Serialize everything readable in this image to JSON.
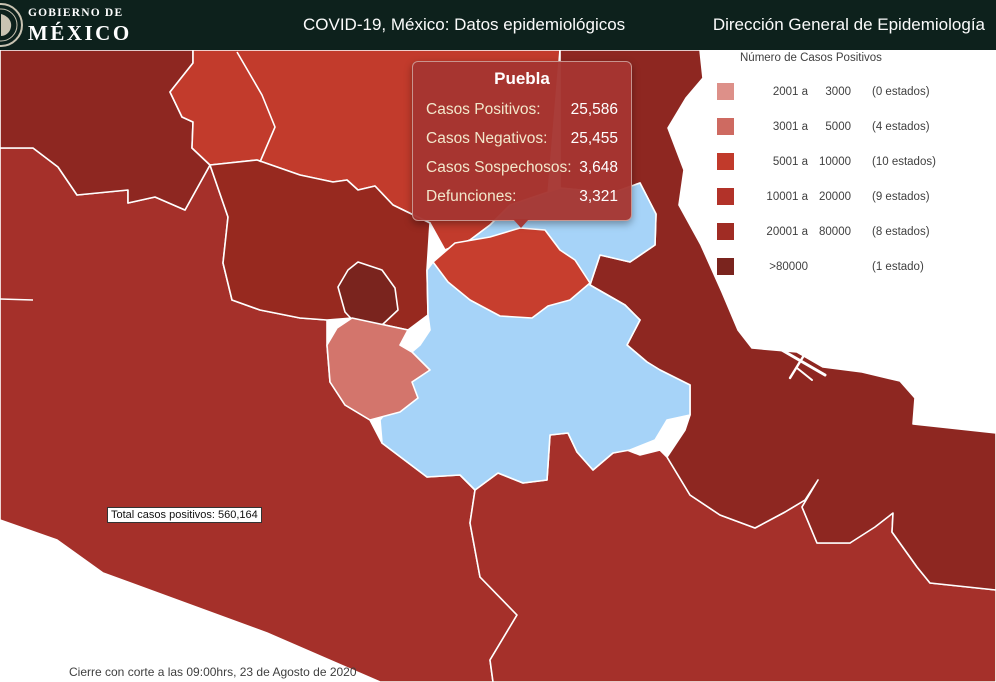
{
  "header": {
    "logo_small": "GOBIERNO DE",
    "logo_large": "MÉXICO",
    "title": "COVID-19, México: Datos epidemiológicos",
    "subtitle": "Dirección General de Epidemiología",
    "bg": "#0d211c"
  },
  "tooltip": {
    "state": "Puebla",
    "rows": [
      {
        "label": "Casos Positivos:",
        "value": "25,586"
      },
      {
        "label": "Casos Negativos:",
        "value": "25,455"
      },
      {
        "label": "Casos Sospechosos:",
        "value": "3,648"
      },
      {
        "label": "Defunciones:",
        "value": "3,321"
      }
    ]
  },
  "legend": {
    "title": "Número de Casos Positivos",
    "items": [
      {
        "from": "2001 a",
        "to": "3000",
        "states": "(0 estados)",
        "color": "#dd9089"
      },
      {
        "from": "3001 a",
        "to": "5000",
        "states": "(4 estados)",
        "color": "#ce6a61"
      },
      {
        "from": "5001 a",
        "to": "10000",
        "states": "(10 estados)",
        "color": "#c13a2b"
      },
      {
        "from": "10001 a",
        "to": "20000",
        "states": "(9 estados)",
        "color": "#b23229"
      },
      {
        "from": "20001 a",
        "to": "80000",
        "states": "(8 estados)",
        "color": "#a02c24"
      },
      {
        "from": ">80000",
        "to": "",
        "states": "(1 estado)",
        "color": "#7a241e"
      }
    ]
  },
  "map": {
    "selected_state": "Puebla",
    "total_label": "Total casos positivos: 560,164",
    "footer": "Cierre con corte a las 09:00hrs, 23 de Agosto de 2020",
    "colors": {
      "ocean": "#ffffff",
      "dark_state": "#8e2721",
      "edomex": "#97291f",
      "mid_state": "#a5302a",
      "bright_state": "#c23b2c",
      "tlaxcala": "#c73e2e",
      "cdmx": "#7a241e",
      "morelos": "#d3756c",
      "selected": "#a6d3f8",
      "border": "#ffffff"
    }
  }
}
